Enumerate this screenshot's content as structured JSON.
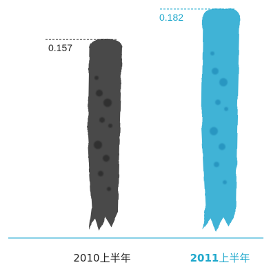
{
  "chart_data": {
    "type": "bar",
    "categories": [
      {
        "year": "2010",
        "suffix": "上半年"
      },
      {
        "year": "2011",
        "suffix": "上半年"
      }
    ],
    "values": [
      0.157,
      0.182
    ],
    "value_labels": [
      "0.157",
      "0.182"
    ],
    "colors": [
      "#4a4a4a",
      "#3fb3d6"
    ],
    "label_colors": [
      "#222222",
      "#1fa8cc"
    ],
    "axis_color": "#3fb3d6",
    "ylim": [
      0,
      0.182
    ],
    "grid": false,
    "legend": "none"
  }
}
